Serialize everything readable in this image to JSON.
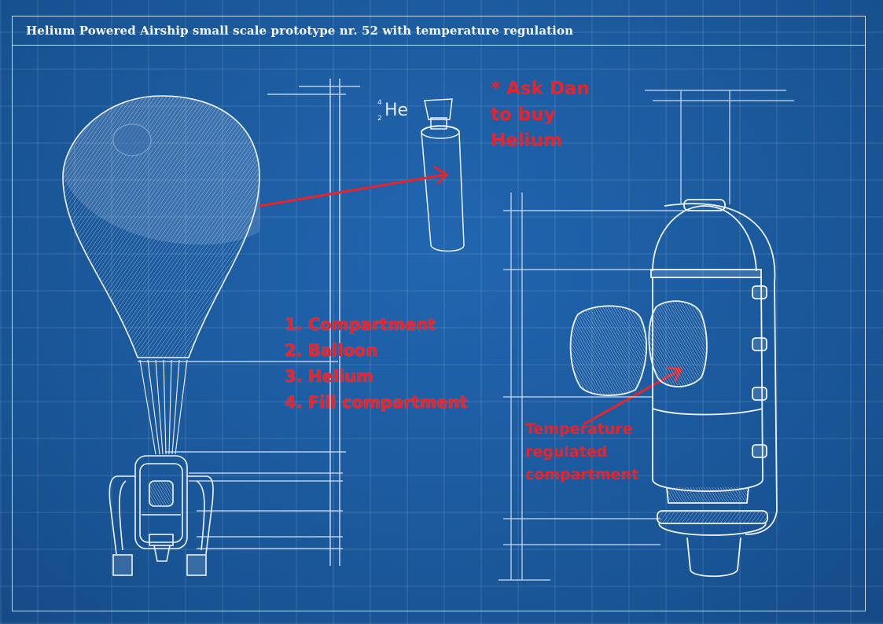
{
  "title": "Helium Powered Airship small scale prototype nr. 52 with temperature regulation",
  "notes": {
    "ask_dan": [
      "* Ask Dan",
      "to buy",
      "Helium"
    ],
    "steps": [
      "1. Compartment",
      "2. Balloon",
      "3. Helium",
      "4. Fill compartment"
    ],
    "temperature": [
      "Temperature",
      "regulated",
      "compartment"
    ]
  },
  "helium_label": {
    "mass": "4",
    "number": "2",
    "symbol": "He"
  },
  "colors": {
    "background": "#1c5fa6",
    "lines": "#eef4ff",
    "annotation": "#e8232b"
  }
}
